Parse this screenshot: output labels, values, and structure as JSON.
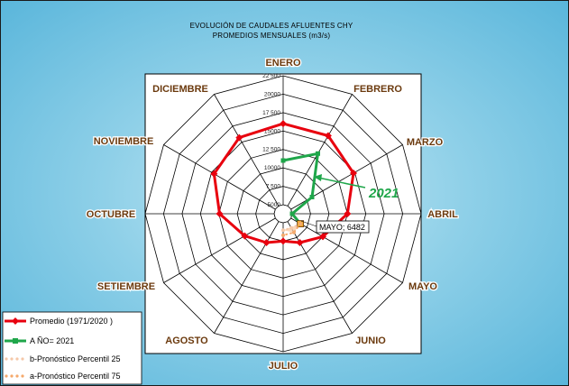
{
  "chart_data": {
    "type": "radar",
    "title": "EVOLUCIÓN DE CAUDALES AFLUENTES CHY",
    "subtitle": "PROMEDIOS MENSUALES (m3/s)",
    "categories": [
      "ENERO",
      "FEBRERO",
      "MARZO",
      "ABRIL",
      "MAYO",
      "JUNIO",
      "JULIO",
      "AGOSTO",
      "SETIEMBRE",
      "OCTUBRE",
      "NOVIEMBRE",
      "DICIEMBRE"
    ],
    "radial_ticks": [
      "22 500",
      "20000",
      "17 500",
      "15000",
      "12 500",
      "10000",
      "7 500",
      "5000"
    ],
    "radial_tick_values": [
      22500,
      20000,
      17500,
      15000,
      12500,
      10000,
      7500,
      5000
    ],
    "rmin": 5000,
    "rmax": 22500,
    "series": [
      {
        "name": "Promedio (1971/2020 )",
        "color": "#e8000e",
        "marker": "diamond",
        "values": [
          16000,
          16000,
          14800,
          12500,
          10000,
          8300,
          7500,
          8300,
          9800,
          12400,
          14600,
          15700
        ]
      },
      {
        "name": "A ÑO= 2021",
        "color": "#1fa64a",
        "marker": "square",
        "values": [
          11000,
          13200,
          8300,
          5000,
          6482,
          null,
          null,
          null,
          null,
          null,
          null,
          null
        ]
      },
      {
        "name": "b-Pronóstico Percentil 25",
        "color": "#f5c8a8",
        "marker": "circle",
        "values": [
          null,
          null,
          null,
          null,
          6482,
          6000,
          6000,
          null,
          null,
          null,
          null,
          null
        ]
      },
      {
        "name": "a-Pronóstico Percentil 75",
        "color": "#f5a96b",
        "marker": "circle",
        "values": [
          null,
          null,
          null,
          null,
          6482,
          6700,
          6700,
          null,
          null,
          null,
          null,
          null
        ]
      }
    ],
    "annotations": {
      "year_label": "2021",
      "callout": "MAYO; 6482"
    },
    "legend_position": "bottom-left"
  }
}
